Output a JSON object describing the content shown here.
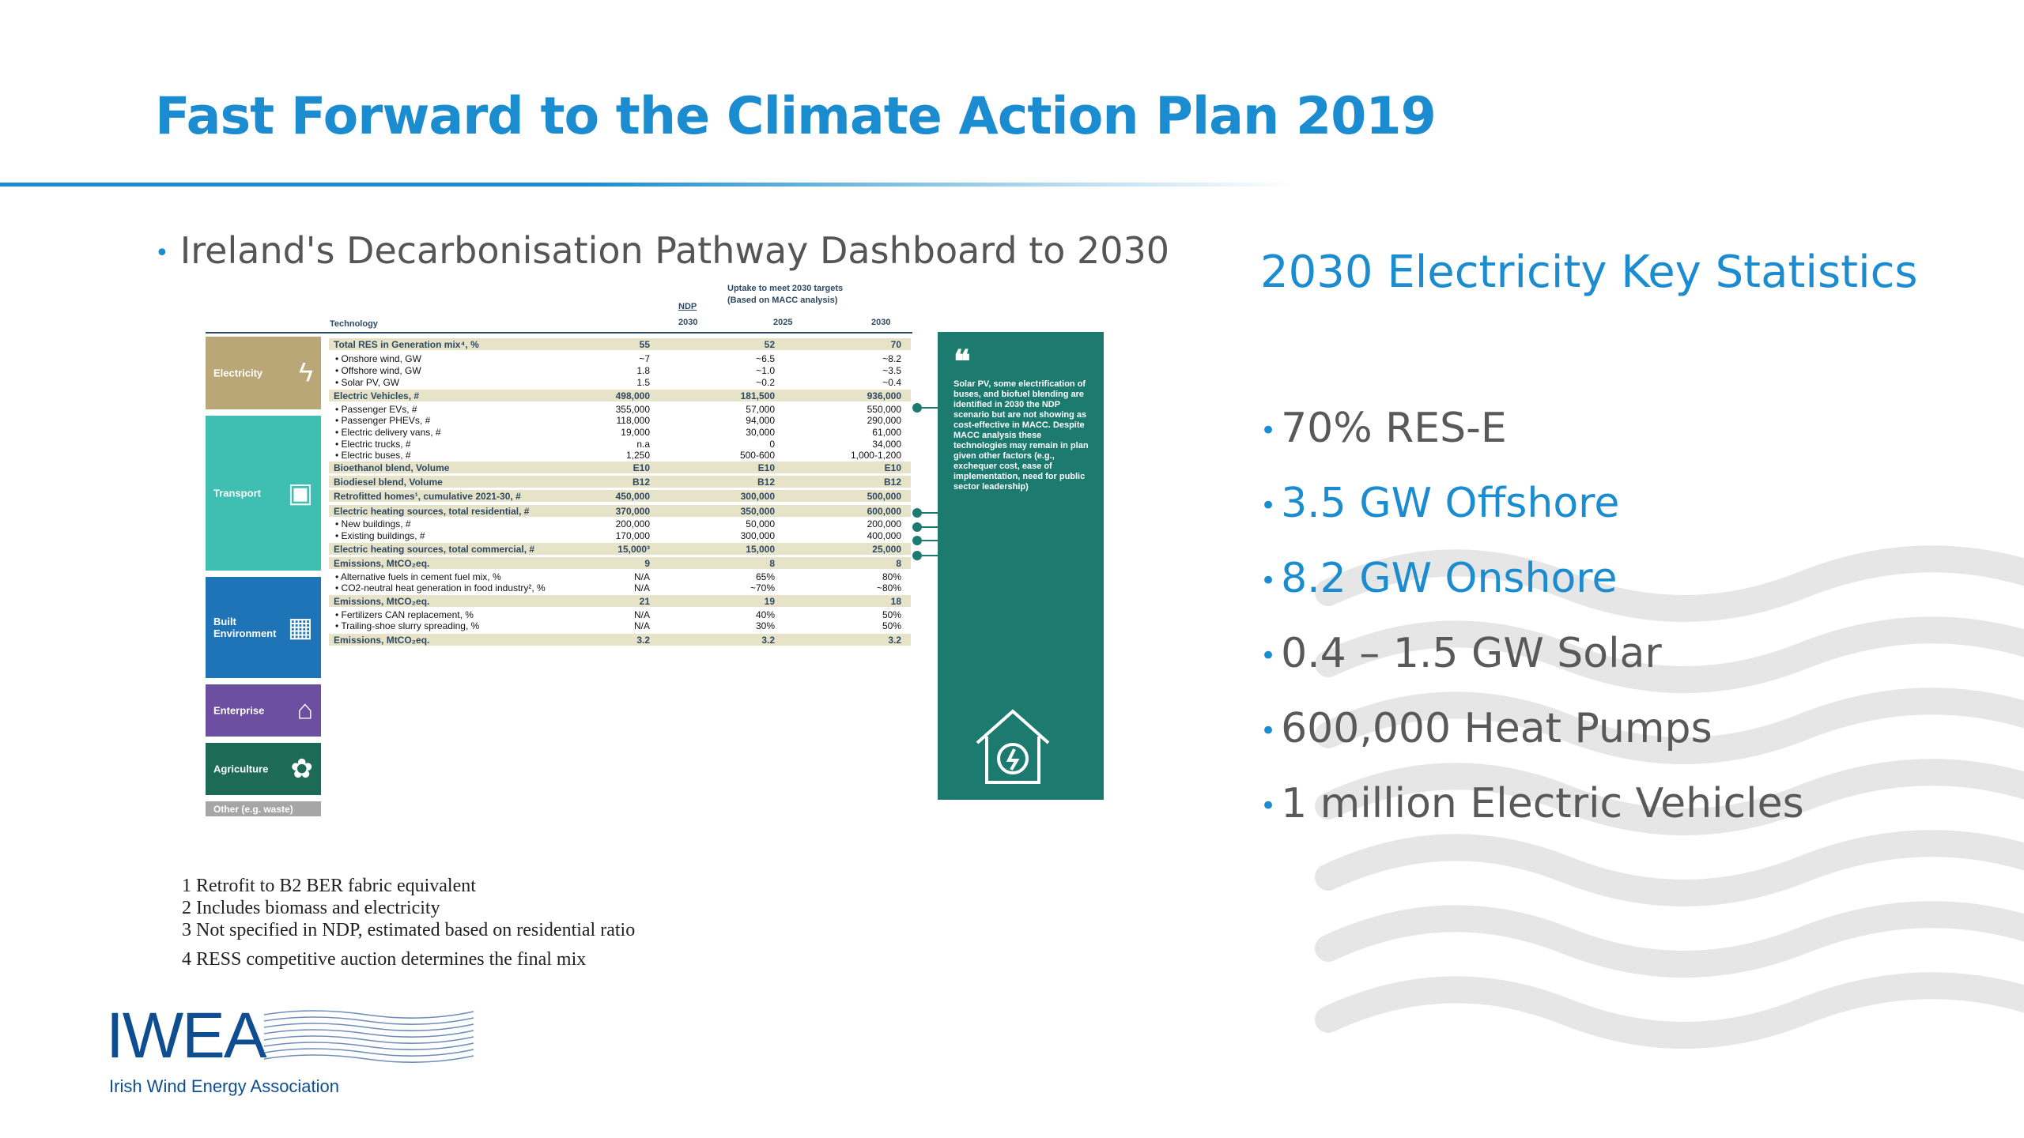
{
  "title": "Fast Forward to the Climate Action Plan 2019",
  "left_bullet": "Ireland's Decarbonisation Pathway Dashboard to 2030",
  "dashboard": {
    "header": {
      "technology": "Technology",
      "ndp": "NDP",
      "ndp_year": "2030",
      "uptake": "Uptake to meet 2030 targets",
      "uptake_sub": "(Based on MACC analysis)",
      "y2025": "2025",
      "y2030": "2030"
    },
    "categories": {
      "electricity": "Electricity",
      "transport": "Transport",
      "built": "Built Environment",
      "enterprise": "Enterprise",
      "agriculture": "Agriculture",
      "other": "Other (e.g. waste)"
    },
    "rows": [
      {
        "label": "Total RES in Generation mix⁴, %",
        "ndp": "55",
        "v2025": "52",
        "v2030": "70"
      },
      {
        "label": "Onshore wind, GW",
        "ndp": "~7",
        "v2025": "~6.5",
        "v2030": "~8.2"
      },
      {
        "label": "Offshore wind, GW",
        "ndp": "1.8",
        "v2025": "~1.0",
        "v2030": "~3.5"
      },
      {
        "label": "Solar PV, GW",
        "ndp": "1.5",
        "v2025": "~0.2",
        "v2030": "~0.4"
      },
      {
        "label": "Electric Vehicles, #",
        "ndp": "498,000",
        "v2025": "181,500",
        "v2030": "936,000"
      },
      {
        "label": "Passenger EVs, #",
        "ndp": "355,000",
        "v2025": "57,000",
        "v2030": "550,000"
      },
      {
        "label": "Passenger PHEVs, #",
        "ndp": "118,000",
        "v2025": "94,000",
        "v2030": "290,000"
      },
      {
        "label": "Electric delivery vans, #",
        "ndp": "19,000",
        "v2025": "30,000",
        "v2030": "61,000"
      },
      {
        "label": "Electric trucks, #",
        "ndp": "n.a",
        "v2025": "0",
        "v2030": "34,000"
      },
      {
        "label": "Electric buses, #",
        "ndp": "1,250",
        "v2025": "500-600",
        "v2030": "1,000-1,200"
      },
      {
        "label": "Bioethanol blend, Volume",
        "ndp": "E10",
        "v2025": "E10",
        "v2030": "E10"
      },
      {
        "label": "Biodiesel blend, Volume",
        "ndp": "B12",
        "v2025": "B12",
        "v2030": "B12"
      },
      {
        "label": "Retrofitted homes¹, cumulative 2021-30, #",
        "ndp": "450,000",
        "v2025": "300,000",
        "v2030": "500,000"
      },
      {
        "label": "Electric heating sources, total residential, #",
        "ndp": "370,000",
        "v2025": "350,000",
        "v2030": "600,000"
      },
      {
        "label": "New buildings, #",
        "ndp": "200,000",
        "v2025": "50,000",
        "v2030": "200,000"
      },
      {
        "label": "Existing buildings, #",
        "ndp": "170,000",
        "v2025": "300,000",
        "v2030": "400,000"
      },
      {
        "label": "Electric heating sources, total commercial, #",
        "ndp": "15,000³",
        "v2025": "15,000",
        "v2030": "25,000"
      },
      {
        "label": "Emissions, MtCO₂eq.",
        "ndp": "9",
        "v2025": "8",
        "v2030": "8"
      },
      {
        "label": "Alternative fuels in cement fuel mix, %",
        "ndp": "N/A",
        "v2025": "65%",
        "v2030": "80%"
      },
      {
        "label": "CO2-neutral heat generation in food industry², %",
        "ndp": "N/A",
        "v2025": "~70%",
        "v2030": "~80%"
      },
      {
        "label": "Emissions, MtCO₂eq.",
        "ndp": "21",
        "v2025": "19",
        "v2030": "18"
      },
      {
        "label": "Fertilizers CAN replacement, %",
        "ndp": "N/A",
        "v2025": "40%",
        "v2030": "50%"
      },
      {
        "label": "Trailing-shoe slurry spreading, %",
        "ndp": "N/A",
        "v2025": "30%",
        "v2030": "50%"
      },
      {
        "label": "Emissions, MtCO₂eq.",
        "ndp": "3.2",
        "v2025": "3.2",
        "v2030": "3.2"
      }
    ],
    "quote_text": "Solar PV, some electrification of buses, and biofuel blending are identified in 2030 the NDP scenario but are not showing as cost-effective in MACC. Despite MACC analysis these technologies may remain in plan given other factors (e.g., exchequer cost, ease of implementation, need for public sector leadership)"
  },
  "footnotes": [
    "1 Retrofit to B2 BER fabric equivalent",
    "2 Includes biomass and electricity",
    "3 Not specified in NDP, estimated based on residential ratio",
    "4 RESS competitive auction determines the final mix"
  ],
  "logo": {
    "name": "IWEA",
    "subtitle": "Irish Wind Energy Association"
  },
  "right_heading": "2030 Electricity Key Statistics",
  "stats": [
    {
      "text": "70% RES-E",
      "highlight": false
    },
    {
      "text": "3.5 GW Offshore",
      "highlight": true
    },
    {
      "text": "8.2 GW Onshore",
      "highlight": true
    },
    {
      "text": "0.4 – 1.5 GW Solar",
      "highlight": false
    },
    {
      "text": "600,000 Heat Pumps",
      "highlight": false
    },
    {
      "text": "1 million Electric Vehicles",
      "highlight": false
    }
  ],
  "colors": {
    "accent": "#1a8ccf",
    "electricity": "#b9a778",
    "transport": "#3fbfb2",
    "built": "#1f74b8",
    "enterprise": "#6c4fa0",
    "agriculture": "#1d6b56",
    "other": "#a6a6a6",
    "band": "#e7e3c9",
    "quote": "#1d7a6f"
  }
}
